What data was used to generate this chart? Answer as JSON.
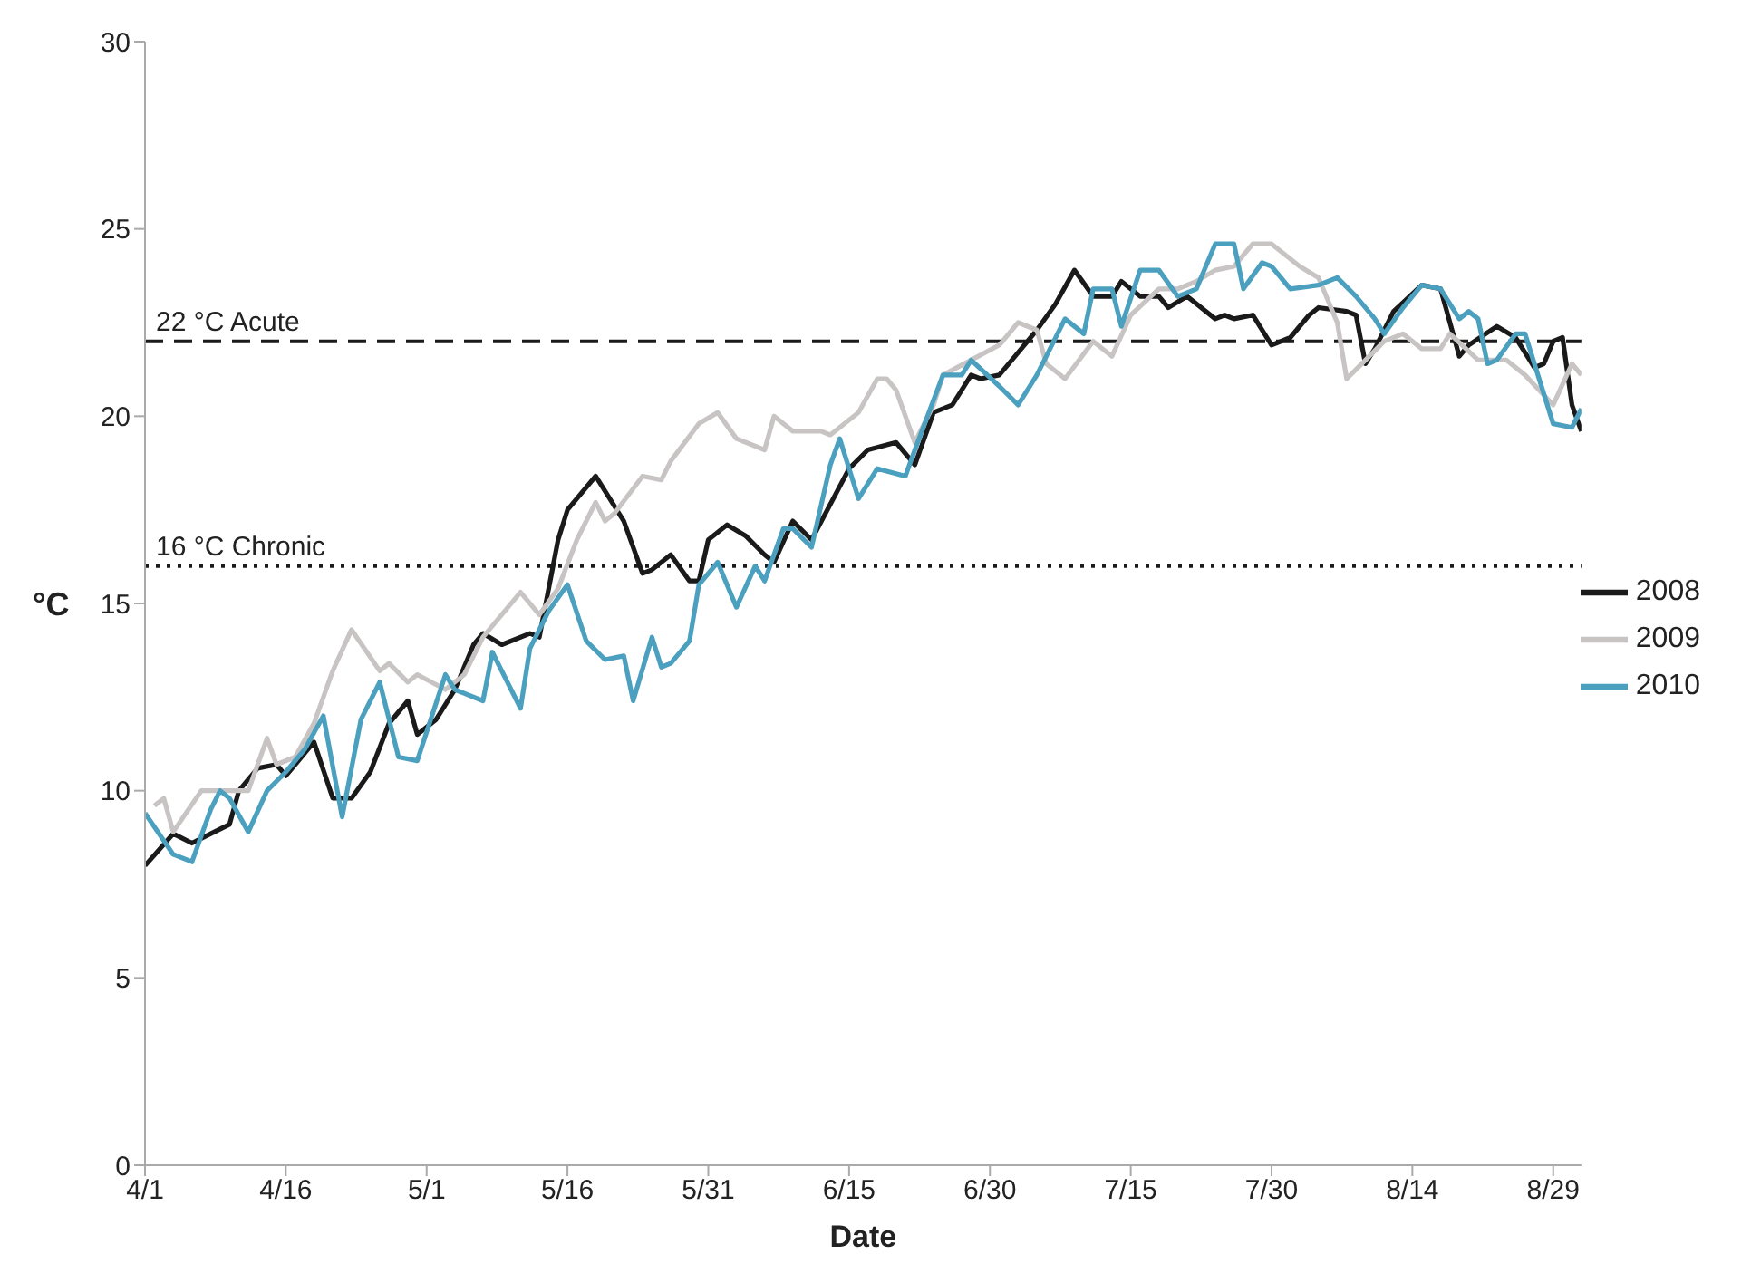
{
  "chart_data": {
    "type": "line",
    "xlabel": "Date",
    "ylabel": "°C",
    "xlim": [
      "--04-01",
      "--09-01"
    ],
    "xticks": [
      {
        "value": "--04-01",
        "label": "4/1"
      },
      {
        "value": "--04-16",
        "label": "4/16"
      },
      {
        "value": "--05-01",
        "label": "5/1"
      },
      {
        "value": "--05-16",
        "label": "5/16"
      },
      {
        "value": "--05-31",
        "label": "5/31"
      },
      {
        "value": "--06-15",
        "label": "6/15"
      },
      {
        "value": "--06-30",
        "label": "6/30"
      },
      {
        "value": "--07-15",
        "label": "7/15"
      },
      {
        "value": "--07-30",
        "label": "7/30"
      },
      {
        "value": "--08-14",
        "label": "8/14"
      },
      {
        "value": "--08-29",
        "label": "8/29"
      }
    ],
    "ylim": [
      0,
      30
    ],
    "yticks": [
      0,
      5,
      10,
      15,
      20,
      25,
      30
    ],
    "grid": false,
    "legend": "right",
    "marker": "none",
    "line_style": "solid",
    "ref_lines": [
      {
        "axis": "y",
        "value": 22,
        "label": "22 °C Acute",
        "line_style": "dashed",
        "color": "#1a1a1a"
      },
      {
        "axis": "y",
        "value": 16,
        "label": "16 °C Chronic",
        "line_style": "dotted",
        "color": "#1a1a1a"
      }
    ],
    "series": [
      {
        "name": "2008",
        "color": "#1a1a1a",
        "x": [
          "--04-01",
          "--04-04",
          "--04-06",
          "--04-08",
          "--04-10",
          "--04-11",
          "--04-13",
          "--04-15",
          "--04-16",
          "--04-17",
          "--04-19",
          "--04-21",
          "--04-23",
          "--04-25",
          "--04-27",
          "--04-29",
          "--04-30",
          "--05-02",
          "--05-04",
          "--05-06",
          "--05-07",
          "--05-09",
          "--05-12",
          "--05-13",
          "--05-15",
          "--05-16",
          "--05-19",
          "--05-22",
          "--05-24",
          "--05-25",
          "--05-27",
          "--05-29",
          "--05-30",
          "--05-31",
          "--06-02",
          "--06-04",
          "--06-06",
          "--06-07",
          "--06-09",
          "--06-11",
          "--06-15",
          "--06-17",
          "--06-20",
          "--06-22",
          "--06-24",
          "--06-26",
          "--06-28",
          "--06-29",
          "--07-01",
          "--07-03",
          "--07-05",
          "--07-07",
          "--07-09",
          "--07-11",
          "--07-13",
          "--07-14",
          "--07-16",
          "--07-18",
          "--07-19",
          "--07-21",
          "--07-24",
          "--07-25",
          "--07-26",
          "--07-28",
          "--07-30",
          "--08-01",
          "--08-03",
          "--08-04",
          "--08-07",
          "--08-08",
          "--08-09",
          "--08-10",
          "--08-12",
          "--08-15",
          "--08-17",
          "--08-19",
          "--08-20",
          "--08-23",
          "--08-25",
          "--08-27",
          "--08-28",
          "--08-29",
          "--08-30",
          "--08-31",
          "--09-01"
        ],
        "values": [
          8.0,
          8.85,
          8.6,
          8.85,
          9.1,
          10.0,
          10.6,
          10.7,
          10.4,
          10.7,
          11.3,
          9.8,
          9.8,
          10.5,
          11.8,
          12.4,
          11.5,
          11.9,
          12.7,
          13.9,
          14.2,
          13.9,
          14.2,
          14.1,
          16.7,
          17.5,
          18.4,
          17.2,
          15.8,
          15.9,
          16.3,
          15.6,
          15.6,
          16.7,
          17.1,
          16.8,
          16.3,
          16.1,
          17.2,
          16.7,
          18.6,
          19.1,
          19.3,
          18.7,
          20.1,
          20.3,
          21.1,
          21.0,
          21.1,
          21.7,
          22.3,
          23.0,
          23.9,
          23.2,
          23.2,
          23.6,
          23.2,
          23.2,
          22.9,
          23.2,
          22.6,
          22.7,
          22.6,
          22.7,
          21.9,
          22.1,
          22.7,
          22.9,
          22.8,
          22.7,
          21.4,
          21.8,
          22.8,
          23.5,
          23.4,
          21.6,
          21.9,
          22.4,
          22.1,
          21.3,
          21.4,
          22.0,
          22.1,
          20.3,
          19.6
        ]
      },
      {
        "name": "2009",
        "color": "#c8c4c4",
        "x": [
          "--04-02",
          "--04-03",
          "--04-04",
          "--04-07",
          "--04-09",
          "--04-12",
          "--04-14",
          "--04-15",
          "--04-17",
          "--04-19",
          "--04-21",
          "--04-23",
          "--04-26",
          "--04-27",
          "--04-29",
          "--04-30",
          "--05-03",
          "--05-05",
          "--05-07",
          "--05-09",
          "--05-11",
          "--05-13",
          "--05-15",
          "--05-17",
          "--05-19",
          "--05-20",
          "--05-21",
          "--05-24",
          "--05-26",
          "--05-27",
          "--05-30",
          "--06-01",
          "--06-03",
          "--06-06",
          "--06-07",
          "--06-09",
          "--06-11",
          "--06-12",
          "--06-13",
          "--06-16",
          "--06-18",
          "--06-19",
          "--06-20",
          "--06-22",
          "--06-24",
          "--06-25",
          "--06-28",
          "--07-01",
          "--07-03",
          "--07-05",
          "--07-06",
          "--07-08",
          "--07-11",
          "--07-13",
          "--07-15",
          "--07-18",
          "--07-20",
          "--07-22",
          "--07-24",
          "--07-26",
          "--07-28",
          "--07-30",
          "--07-31",
          "--08-02",
          "--08-04",
          "--08-06",
          "--08-07",
          "--08-09",
          "--08-11",
          "--08-13",
          "--08-15",
          "--08-17",
          "--08-18",
          "--08-21",
          "--08-24",
          "--08-26",
          "--08-29",
          "--08-31",
          "--09-01"
        ],
        "values": [
          9.6,
          9.8,
          8.9,
          10.0,
          10.0,
          10.0,
          11.4,
          10.7,
          10.9,
          11.8,
          13.2,
          14.3,
          13.2,
          13.4,
          12.9,
          13.1,
          12.7,
          13.1,
          14.1,
          14.7,
          15.3,
          14.7,
          15.4,
          16.7,
          17.7,
          17.2,
          17.4,
          18.4,
          18.3,
          18.8,
          19.8,
          20.1,
          19.4,
          19.1,
          20.0,
          19.6,
          19.6,
          19.6,
          19.5,
          20.1,
          21.0,
          21.0,
          20.7,
          19.3,
          20.3,
          21.1,
          21.5,
          21.9,
          22.5,
          22.3,
          21.4,
          21.0,
          22.0,
          21.6,
          22.7,
          23.4,
          23.4,
          23.6,
          23.9,
          24.0,
          24.6,
          24.6,
          24.4,
          24.0,
          23.7,
          22.5,
          21.0,
          21.5,
          22.0,
          22.2,
          21.8,
          21.8,
          22.2,
          21.5,
          21.5,
          21.1,
          20.3,
          21.4,
          21.1
        ]
      },
      {
        "name": "2010",
        "color": "#4aa0be",
        "x": [
          "--04-01",
          "--04-04",
          "--04-06",
          "--04-08",
          "--04-09",
          "--04-10",
          "--04-12",
          "--04-14",
          "--04-16",
          "--04-18",
          "--04-20",
          "--04-22",
          "--04-24",
          "--04-26",
          "--04-28",
          "--04-30",
          "--05-03",
          "--05-04",
          "--05-07",
          "--05-08",
          "--05-11",
          "--05-12",
          "--05-14",
          "--05-16",
          "--05-18",
          "--05-20",
          "--05-22",
          "--05-23",
          "--05-25",
          "--05-26",
          "--05-27",
          "--05-29",
          "--05-30",
          "--06-01",
          "--06-03",
          "--06-05",
          "--06-06",
          "--06-08",
          "--06-09",
          "--06-11",
          "--06-13",
          "--06-14",
          "--06-16",
          "--06-18",
          "--06-21",
          "--06-22",
          "--06-25",
          "--06-27",
          "--06-28",
          "--07-01",
          "--07-03",
          "--07-05",
          "--07-08",
          "--07-10",
          "--07-11",
          "--07-13",
          "--07-14",
          "--07-16",
          "--07-18",
          "--07-20",
          "--07-22",
          "--07-24",
          "--07-26",
          "--07-27",
          "--07-29",
          "--07-30",
          "--08-01",
          "--08-04",
          "--08-06",
          "--08-08",
          "--08-10",
          "--08-11",
          "--08-13",
          "--08-15",
          "--08-17",
          "--08-19",
          "--08-20",
          "--08-21",
          "--08-22",
          "--08-23",
          "--08-25",
          "--08-26",
          "--08-29",
          "--08-31",
          "--09-01"
        ],
        "values": [
          9.4,
          8.3,
          8.1,
          9.5,
          10.0,
          9.8,
          8.9,
          10.0,
          10.5,
          11.1,
          12.0,
          9.3,
          11.9,
          12.9,
          10.9,
          10.8,
          13.1,
          12.7,
          12.4,
          13.7,
          12.2,
          13.8,
          14.8,
          15.5,
          14.0,
          13.5,
          13.6,
          12.4,
          14.1,
          13.3,
          13.4,
          14.0,
          15.5,
          16.1,
          14.9,
          16.0,
          15.6,
          17.0,
          17.0,
          16.5,
          18.7,
          19.4,
          17.8,
          18.6,
          18.4,
          19.1,
          21.1,
          21.1,
          21.5,
          20.8,
          20.3,
          21.1,
          22.6,
          22.2,
          23.4,
          23.4,
          22.4,
          23.9,
          23.9,
          23.2,
          23.4,
          24.6,
          24.6,
          23.4,
          24.1,
          24.0,
          23.4,
          23.5,
          23.7,
          23.2,
          22.6,
          22.2,
          22.9,
          23.5,
          23.4,
          22.6,
          22.8,
          22.6,
          21.4,
          21.5,
          22.2,
          22.2,
          19.8,
          19.7,
          20.2
        ]
      }
    ]
  }
}
